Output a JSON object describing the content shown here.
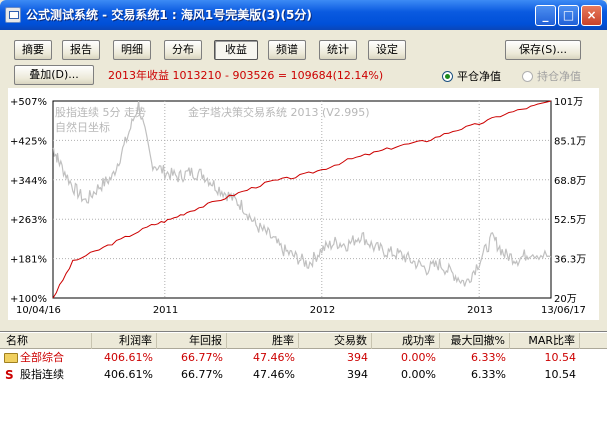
{
  "window": {
    "title": "公式测试系统 - 交易系统1 : 海风1号完美版(3)(5分)",
    "min_label": "_",
    "max_label": "□",
    "close_label": "×"
  },
  "tabs": [
    {
      "label": "摘要"
    },
    {
      "label": "报告"
    },
    {
      "label": "明细"
    },
    {
      "label": "分布"
    },
    {
      "label": "收益"
    },
    {
      "label": "频谱"
    },
    {
      "label": "统计"
    },
    {
      "label": "设定"
    }
  ],
  "toolbar": {
    "save_label": "保存(S)...",
    "overlay_label": "叠加(D)..."
  },
  "summary_text": "2013年收益 1013210 - 903526 = 109684(12.14%)",
  "radio": {
    "close_equity": "平仓净值",
    "hold_equity": "持仓净值"
  },
  "colors": {
    "equity_line": "#cc0000",
    "price_line": "#c0c0c0",
    "text_red": "#cc0000"
  },
  "chart_data": {
    "type": "line",
    "legend_top": "股指连续 5分 走势",
    "legend_bottom": "自然日坐标",
    "watermark": "金字塔决策交易系统 2013 (V2.995)",
    "x_labels": [
      "10/04/16",
      "2011",
      "2012",
      "2013",
      "13/06/17"
    ],
    "left_ticks": [
      "+507%",
      "+425%",
      "+344%",
      "+263%",
      "+181%",
      "+100%"
    ],
    "right_ticks": [
      "101万",
      "85.1万",
      "68.8万",
      "52.5万",
      "36.3万",
      "20万"
    ],
    "equity_series": {
      "name": "收益",
      "x": [
        "2010-04-16",
        "2010-06-01",
        "2010-08-01",
        "2010-10-01",
        "2010-12-01",
        "2011-01-15",
        "2011-03-01",
        "2011-05-01",
        "2011-07-01",
        "2011-09-01",
        "2011-11-01",
        "2012-01-01",
        "2012-03-01",
        "2012-05-01",
        "2012-07-01",
        "2012-09-01",
        "2012-11-01",
        "2013-01-01",
        "2013-03-01",
        "2013-05-01",
        "2013-06-17"
      ],
      "values": [
        100,
        175,
        200,
        225,
        250,
        263,
        280,
        300,
        320,
        340,
        350,
        365,
        385,
        400,
        415,
        425,
        445,
        460,
        480,
        495,
        507
      ]
    },
    "price_series": {
      "name": "股指连续",
      "x": [
        "2010-04-16",
        "2010-05-01",
        "2010-06-01",
        "2010-07-01",
        "2010-08-01",
        "2010-09-01",
        "2010-10-01",
        "2010-11-01",
        "2010-12-01",
        "2011-01-01",
        "2011-02-01",
        "2011-03-01",
        "2011-04-01",
        "2011-05-01",
        "2011-06-01",
        "2011-07-01",
        "2011-08-01",
        "2011-09-01",
        "2011-10-01",
        "2011-11-01",
        "2011-12-01",
        "2012-01-01",
        "2012-02-01",
        "2012-03-01",
        "2012-04-01",
        "2012-05-01",
        "2012-06-01",
        "2012-07-01",
        "2012-08-01",
        "2012-09-01",
        "2012-10-01",
        "2012-11-01",
        "2012-12-01",
        "2013-01-01",
        "2013-02-01",
        "2013-03-01",
        "2013-04-01",
        "2013-05-01",
        "2013-06-17"
      ],
      "values": [
        410,
        380,
        330,
        300,
        330,
        350,
        420,
        500,
        380,
        360,
        350,
        360,
        355,
        330,
        310,
        290,
        250,
        230,
        200,
        185,
        170,
        200,
        215,
        210,
        230,
        205,
        195,
        190,
        175,
        160,
        170,
        150,
        130,
        175,
        225,
        190,
        180,
        195,
        185
      ]
    },
    "ylim": [
      100,
      507
    ],
    "grid": true
  },
  "table": {
    "headers": [
      "名称",
      "利润率",
      "年回报",
      "胜率",
      "交易数",
      "成功率",
      "最大回撤%",
      "MAR比率"
    ],
    "rows": [
      {
        "name": "全部综合",
        "profit": "406.61%",
        "annual": "66.77%",
        "win": "47.46%",
        "trades": "394",
        "success": "0.00%",
        "drawdown": "6.33%",
        "mar": "10.54"
      },
      {
        "name": "股指连续",
        "profit": "406.61%",
        "annual": "66.77%",
        "win": "47.46%",
        "trades": "394",
        "success": "0.00%",
        "drawdown": "6.33%",
        "mar": "10.54"
      }
    ]
  }
}
